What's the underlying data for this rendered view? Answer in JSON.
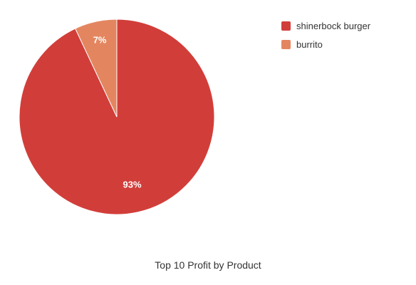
{
  "chart_data": {
    "type": "pie",
    "title": "Top 10 Profit by Product",
    "categories": [
      "shinerbock burger",
      "burrito"
    ],
    "values": [
      93,
      7
    ],
    "labels": [
      "93%",
      "7%"
    ],
    "colors": [
      "#d13e3a",
      "#e38660"
    ],
    "legend_position": "top-right"
  }
}
